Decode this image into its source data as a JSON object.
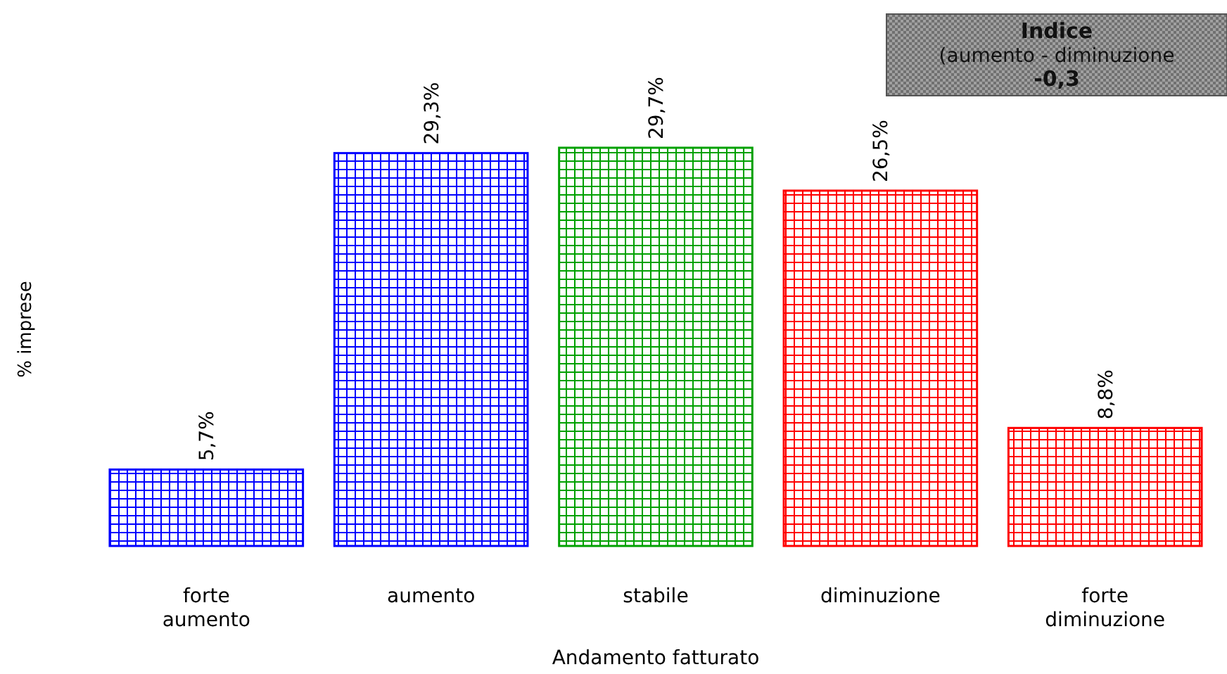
{
  "chart_data": {
    "type": "bar",
    "xlabel": "Andamento fatturato",
    "ylabel": "% imprese",
    "categories": [
      "forte aumento",
      "aumento",
      "stabile",
      "diminuzione",
      "forte diminuzione"
    ],
    "values": [
      5.7,
      29.3,
      29.7,
      26.5,
      8.8
    ],
    "value_labels": [
      "5,7%",
      "29,3%",
      "29,7%",
      "26,5%",
      "8,8%"
    ],
    "colors": [
      "#0000ff",
      "#0000ff",
      "#00a000",
      "#ff0000",
      "#ff0000"
    ],
    "annotations": [
      "Indice",
      "(aumento - diminuzione",
      "-0,3"
    ]
  }
}
